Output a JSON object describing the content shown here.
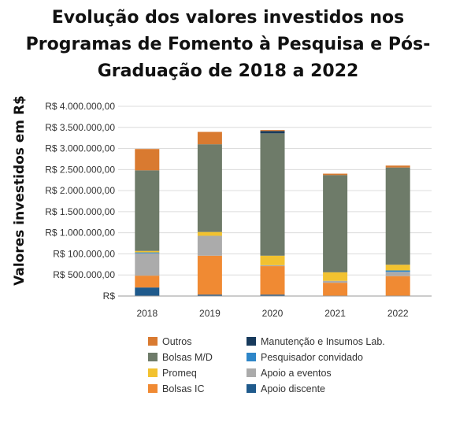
{
  "chart_data": {
    "type": "bar",
    "stacked": true,
    "title_lines": [
      "Evolução dos valores investidos nos",
      "Programas de Fomento à Pesquisa e Pós-",
      "Graduação de 2018 a 2022"
    ],
    "ylabel": "Valores investidos em R$",
    "xlabel": "",
    "categories": [
      "2018",
      "2019",
      "2020",
      "2021",
      "2022"
    ],
    "y_tick_labels": [
      "R$",
      "R$ 500.000,00",
      "R$ 100.000,00",
      "R$ 1.000.000,00",
      "R$ 1.500.000,00",
      "R$ 2.000.000,00",
      "R$ 2.500.000,00",
      "R$ 3.000.000,00",
      "R$ 3.500.000,00",
      "R$ 4.000.000,00"
    ],
    "ylim": [
      0,
      4000000
    ],
    "grid": true,
    "legend_position": "bottom",
    "series": [
      {
        "name": "Apoio discente",
        "color": "#1f5a8c",
        "values": [
          180000,
          30000,
          30000,
          0,
          0
        ]
      },
      {
        "name": "Bolsas IC",
        "color": "#f08a33",
        "values": [
          250000,
          820000,
          600000,
          280000,
          420000
        ]
      },
      {
        "name": "Apoio a eventos",
        "color": "#ababab",
        "values": [
          470000,
          420000,
          20000,
          40000,
          90000
        ]
      },
      {
        "name": "Pesquisador convidado",
        "color": "#2e86c8",
        "values": [
          20000,
          0,
          0,
          0,
          30000
        ]
      },
      {
        "name": "Promeq",
        "color": "#f2c230",
        "values": [
          30000,
          80000,
          200000,
          180000,
          120000
        ]
      },
      {
        "name": "Bolsas M/D",
        "color": "#6e7b69",
        "values": [
          1700000,
          1850000,
          2580000,
          2050000,
          2050000
        ]
      },
      {
        "name": "Manutenção e Insumos Lab.",
        "color": "#173a5c",
        "values": [
          0,
          0,
          50000,
          0,
          0
        ]
      },
      {
        "name": "Outros",
        "color": "#d97a30",
        "values": [
          450000,
          260000,
          20000,
          30000,
          40000
        ]
      }
    ],
    "legend_left": [
      "Outros",
      "Bolsas M/D",
      "Promeq",
      "Bolsas IC"
    ],
    "legend_right": [
      "Manutenção e Insumos Lab.",
      "Pesquisador convidado",
      "Apoio a eventos",
      "Apoio discente"
    ]
  }
}
